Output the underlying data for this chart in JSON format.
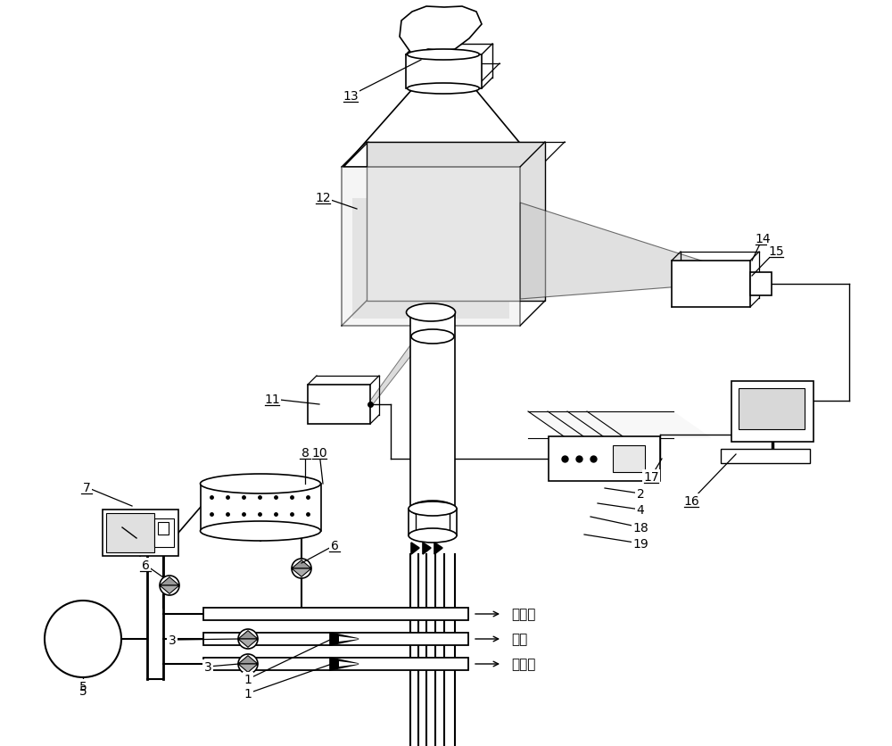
{
  "bg_color": "#ffffff",
  "figsize": [
    10.0,
    8.37
  ],
  "dpi": 100,
  "chinese": {
    "erci_feng": "二次风",
    "ran_qi": "燃气",
    "yici_feng": "一次风"
  }
}
